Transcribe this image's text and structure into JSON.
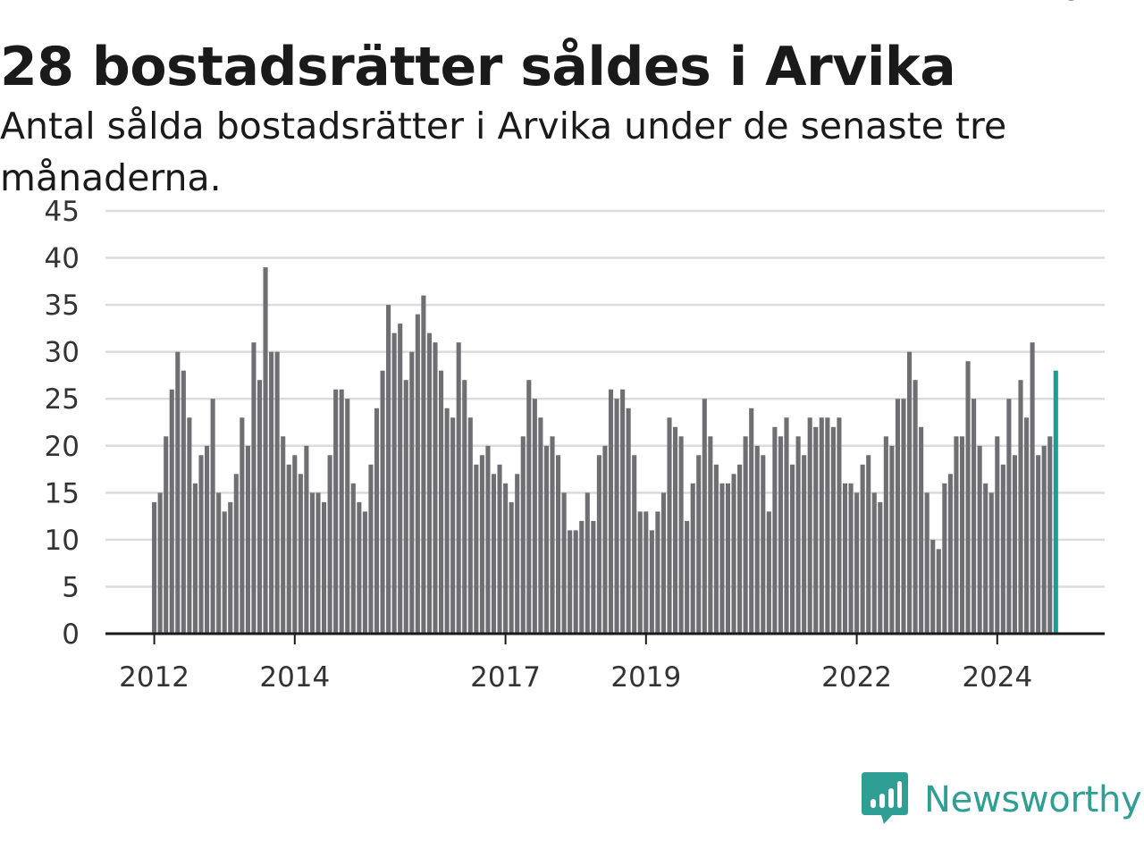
{
  "header": {
    "title": "28 bostadsrätter såldes i Arvika",
    "subtitle": "Antal sålda bostadsrätter i Arvika under de senaste tre månaderna."
  },
  "brand": {
    "name": "Newsworthy",
    "icon": "newsworthy-logo-icon"
  },
  "colors": {
    "bar": "#6e6e73",
    "highlight": "#1a9e93",
    "brand": "#2f9e93"
  },
  "chart_data": {
    "type": "bar",
    "title": "28 bostadsrätter såldes i Arvika",
    "subtitle": "Antal sålda bostadsrätter i Arvika under de senaste tre månaderna.",
    "xlabel": "",
    "ylabel": "",
    "ylim": [
      0,
      45
    ],
    "yticks": [
      0,
      5,
      10,
      15,
      20,
      25,
      30,
      35,
      40,
      45
    ],
    "grid": true,
    "legend": "none",
    "start": "2012-01",
    "interval": "month",
    "xtick_labels": [
      "2012",
      "2014",
      "2017",
      "2019",
      "2022",
      "2024"
    ],
    "xtick_months": [
      "2012-01",
      "2014-01",
      "2017-01",
      "2019-01",
      "2022-01",
      "2024-01"
    ],
    "annotation": {
      "month": "2024-12",
      "text": "28"
    },
    "highlight_last": true,
    "series": [
      {
        "values": [
          14,
          15,
          21,
          26,
          30,
          28,
          23,
          16,
          19,
          20,
          25,
          15,
          13,
          14,
          17,
          23,
          20,
          31,
          27,
          39,
          30,
          30,
          21,
          18,
          19,
          17,
          20,
          15,
          15,
          14,
          19,
          26,
          26,
          25,
          16,
          14,
          13,
          18,
          24,
          28,
          35,
          32,
          33,
          27,
          30,
          34,
          36,
          32,
          31,
          28,
          24,
          23,
          31,
          27,
          23,
          18,
          19,
          20,
          17,
          18,
          16,
          14,
          17,
          21,
          27,
          25,
          23,
          20,
          21,
          19,
          15,
          11,
          11,
          12,
          15,
          12,
          19,
          20,
          26,
          25,
          26,
          24,
          19,
          13,
          13,
          11,
          13,
          15,
          23,
          22,
          21,
          12,
          16,
          19,
          25,
          21,
          18,
          16,
          16,
          17,
          18,
          21,
          24,
          20,
          19,
          13,
          22,
          21,
          23,
          18,
          21,
          19,
          23,
          22,
          23,
          23,
          22,
          23,
          16,
          16,
          15,
          18,
          19,
          15,
          14,
          21,
          20,
          25,
          25,
          30,
          27,
          22,
          15,
          10,
          9,
          16,
          17,
          21,
          21,
          29,
          25,
          20,
          16,
          15,
          21,
          18,
          25,
          19,
          27,
          23,
          31,
          19,
          20,
          21,
          28
        ]
      }
    ]
  }
}
